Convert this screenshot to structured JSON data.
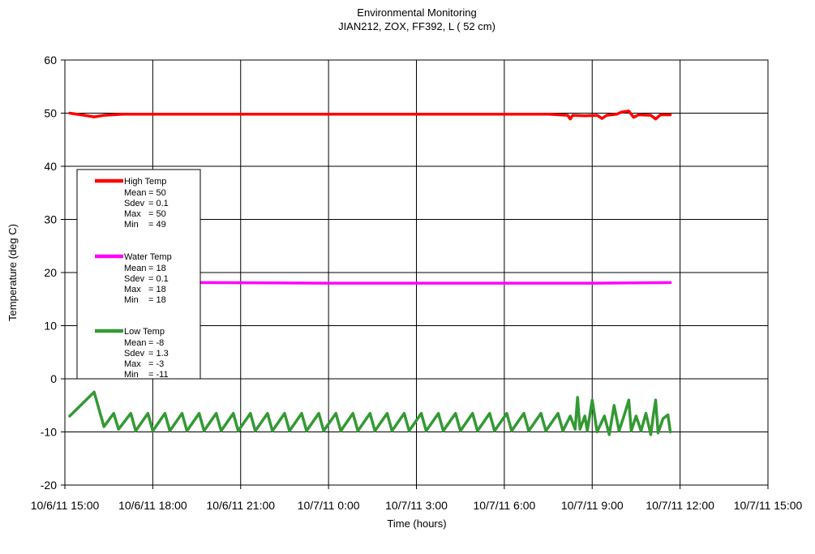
{
  "chart_data": {
    "type": "line",
    "title": "Environmental Monitoring",
    "subtitle": "JIAN212, ZOX, FF392, L ( 52 cm)",
    "xlabel": "Time (hours)",
    "ylabel": "Temperature (deg C)",
    "ylim": [
      -20,
      60
    ],
    "yticks": [
      -20,
      -10,
      0,
      10,
      20,
      30,
      40,
      50,
      60
    ],
    "xlim": [
      "2011-10-06 15:00",
      "2011-10-07 15:00"
    ],
    "xticks": [
      "10/6/11 15:00",
      "10/6/11 18:00",
      "10/6/11 21:00",
      "10/7/11 0:00",
      "10/7/11 3:00",
      "10/7/11 6:00",
      "10/7/11 9:00",
      "10/7/11 12:00",
      "10/7/11 15:00"
    ],
    "grid": true,
    "legend_position": "left",
    "series": [
      {
        "name": "High Temp",
        "color": "#ff0000",
        "stats": [
          "Mean    = 50",
          "Sdev    = 0.1",
          "Max     = 50",
          "Min     = 49"
        ],
        "points": [
          [
            "2011-10-06 15:10",
            50.0
          ],
          [
            "2011-10-06 15:40",
            49.6
          ],
          [
            "2011-10-06 16:00",
            49.3
          ],
          [
            "2011-10-06 16:20",
            49.6
          ],
          [
            "2011-10-06 17:00",
            49.8
          ],
          [
            "2011-10-06 20:00",
            49.8
          ],
          [
            "2011-10-07 00:00",
            49.8
          ],
          [
            "2011-10-07 03:00",
            49.8
          ],
          [
            "2011-10-07 06:00",
            49.8
          ],
          [
            "2011-10-07 07:30",
            49.8
          ],
          [
            "2011-10-07 08:10",
            49.6
          ],
          [
            "2011-10-07 08:15",
            48.9
          ],
          [
            "2011-10-07 08:20",
            49.6
          ],
          [
            "2011-10-07 08:45",
            49.5
          ],
          [
            "2011-10-07 09:10",
            49.6
          ],
          [
            "2011-10-07 09:20",
            49.0
          ],
          [
            "2011-10-07 09:30",
            49.6
          ],
          [
            "2011-10-07 09:50",
            49.8
          ],
          [
            "2011-10-07 10:00",
            50.2
          ],
          [
            "2011-10-07 10:15",
            50.4
          ],
          [
            "2011-10-07 10:25",
            49.2
          ],
          [
            "2011-10-07 10:35",
            49.7
          ],
          [
            "2011-10-07 11:00",
            49.6
          ],
          [
            "2011-10-07 11:10",
            48.9
          ],
          [
            "2011-10-07 11:20",
            49.7
          ],
          [
            "2011-10-07 11:40",
            49.7
          ]
        ]
      },
      {
        "name": "Water Temp",
        "color": "#ff00ff",
        "stats": [
          "Mean    = 18",
          "Sdev    = 0.1",
          "Max     = 18",
          "Min     = 18"
        ],
        "points": [
          [
            "2011-10-06 16:30",
            18.1
          ],
          [
            "2011-10-06 20:00",
            18.1
          ],
          [
            "2011-10-07 00:00",
            18.0
          ],
          [
            "2011-10-07 06:00",
            18.0
          ],
          [
            "2011-10-07 09:00",
            18.0
          ],
          [
            "2011-10-07 11:40",
            18.1
          ]
        ]
      },
      {
        "name": "Low Temp",
        "color": "#339933",
        "stats": [
          "Mean    = -8",
          "Sdev    = 1.3",
          "Max     = -3",
          "Min     = -11"
        ],
        "points": [
          [
            "2011-10-06 15:10",
            -7.0
          ],
          [
            "2011-10-06 16:00",
            -2.5
          ],
          [
            "2011-10-06 16:20",
            -9.0
          ],
          [
            "2011-10-06 16:40",
            -6.5
          ],
          [
            "2011-10-06 16:50",
            -9.5
          ],
          [
            "2011-10-06 17:15",
            -6.5
          ],
          [
            "2011-10-06 17:25",
            -9.8
          ],
          [
            "2011-10-06 17:50",
            -6.5
          ],
          [
            "2011-10-06 18:00",
            -9.8
          ],
          [
            "2011-10-06 18:25",
            -6.5
          ],
          [
            "2011-10-06 18:35",
            -9.8
          ],
          [
            "2011-10-06 19:00",
            -6.5
          ],
          [
            "2011-10-06 19:10",
            -9.8
          ],
          [
            "2011-10-06 19:35",
            -6.5
          ],
          [
            "2011-10-06 19:45",
            -9.8
          ],
          [
            "2011-10-06 20:10",
            -6.5
          ],
          [
            "2011-10-06 20:20",
            -9.8
          ],
          [
            "2011-10-06 20:45",
            -6.5
          ],
          [
            "2011-10-06 20:55",
            -9.8
          ],
          [
            "2011-10-06 21:20",
            -6.5
          ],
          [
            "2011-10-06 21:30",
            -9.8
          ],
          [
            "2011-10-06 21:55",
            -6.5
          ],
          [
            "2011-10-06 22:05",
            -9.8
          ],
          [
            "2011-10-06 22:30",
            -6.5
          ],
          [
            "2011-10-06 22:40",
            -9.8
          ],
          [
            "2011-10-06 23:05",
            -6.5
          ],
          [
            "2011-10-06 23:15",
            -9.8
          ],
          [
            "2011-10-06 23:40",
            -6.5
          ],
          [
            "2011-10-06 23:50",
            -9.8
          ],
          [
            "2011-10-07 00:15",
            -6.5
          ],
          [
            "2011-10-07 00:25",
            -9.8
          ],
          [
            "2011-10-07 00:50",
            -6.5
          ],
          [
            "2011-10-07 01:00",
            -9.8
          ],
          [
            "2011-10-07 01:25",
            -6.5
          ],
          [
            "2011-10-07 01:35",
            -9.8
          ],
          [
            "2011-10-07 02:00",
            -6.5
          ],
          [
            "2011-10-07 02:10",
            -9.8
          ],
          [
            "2011-10-07 02:35",
            -6.5
          ],
          [
            "2011-10-07 02:45",
            -9.8
          ],
          [
            "2011-10-07 03:10",
            -6.5
          ],
          [
            "2011-10-07 03:20",
            -9.8
          ],
          [
            "2011-10-07 03:45",
            -6.5
          ],
          [
            "2011-10-07 03:55",
            -9.8
          ],
          [
            "2011-10-07 04:20",
            -6.5
          ],
          [
            "2011-10-07 04:30",
            -9.8
          ],
          [
            "2011-10-07 04:55",
            -6.5
          ],
          [
            "2011-10-07 05:05",
            -9.8
          ],
          [
            "2011-10-07 05:30",
            -6.5
          ],
          [
            "2011-10-07 05:40",
            -9.8
          ],
          [
            "2011-10-07 06:05",
            -6.5
          ],
          [
            "2011-10-07 06:15",
            -9.8
          ],
          [
            "2011-10-07 06:40",
            -6.5
          ],
          [
            "2011-10-07 06:50",
            -9.8
          ],
          [
            "2011-10-07 07:15",
            -6.5
          ],
          [
            "2011-10-07 07:25",
            -9.8
          ],
          [
            "2011-10-07 07:50",
            -6.5
          ],
          [
            "2011-10-07 08:00",
            -9.8
          ],
          [
            "2011-10-07 08:15",
            -7.0
          ],
          [
            "2011-10-07 08:25",
            -9.5
          ],
          [
            "2011-10-07 08:30",
            -3.5
          ],
          [
            "2011-10-07 08:35",
            -9.5
          ],
          [
            "2011-10-07 08:45",
            -7.0
          ],
          [
            "2011-10-07 08:50",
            -9.8
          ],
          [
            "2011-10-07 09:00",
            -4.0
          ],
          [
            "2011-10-07 09:10",
            -10.0
          ],
          [
            "2011-10-07 09:25",
            -7.0
          ],
          [
            "2011-10-07 09:35",
            -10.5
          ],
          [
            "2011-10-07 09:45",
            -5.0
          ],
          [
            "2011-10-07 09:55",
            -9.8
          ],
          [
            "2011-10-07 10:05",
            -7.0
          ],
          [
            "2011-10-07 10:15",
            -4.0
          ],
          [
            "2011-10-07 10:20",
            -9.8
          ],
          [
            "2011-10-07 10:30",
            -7.0
          ],
          [
            "2011-10-07 10:40",
            -9.8
          ],
          [
            "2011-10-07 10:50",
            -6.5
          ],
          [
            "2011-10-07 11:00",
            -10.5
          ],
          [
            "2011-10-07 11:05",
            -7.0
          ],
          [
            "2011-10-07 11:10",
            -4.0
          ],
          [
            "2011-10-07 11:15",
            -10.2
          ],
          [
            "2011-10-07 11:25",
            -7.5
          ],
          [
            "2011-10-07 11:35",
            -6.8
          ],
          [
            "2011-10-07 11:40",
            -10.0
          ]
        ]
      }
    ]
  }
}
